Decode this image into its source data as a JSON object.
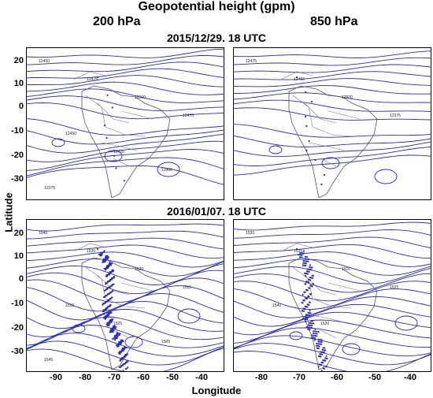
{
  "figure": {
    "title": "Geopotential height (gpm)",
    "columns": [
      "200 hPa",
      "850 hPa"
    ],
    "rows": [
      "2015/12/29.  18 UTC",
      "2016/01/07.  18 UTC"
    ],
    "ylabel": "Latitude",
    "xlabel": "Longitude",
    "yticks": [
      "20",
      "10",
      "0",
      "-10",
      "-20",
      "-30"
    ],
    "xticks": [
      "-90",
      "-80",
      "-70",
      "-60",
      "-50",
      "-40"
    ],
    "line_color": "#2a2ab8",
    "panels": [
      {
        "id": "top-left",
        "labels": [
          "12450",
          "12475",
          "12500",
          "12475",
          "12450",
          "12425",
          "12400",
          "12375"
        ]
      },
      {
        "id": "top-right",
        "labels": [
          "12475",
          "12450",
          "12500",
          "12375"
        ]
      },
      {
        "id": "bottom-left",
        "labels": [
          "1540",
          "1530",
          "1520",
          "1515",
          "1510",
          "1525",
          "1505",
          "1545"
        ]
      },
      {
        "id": "bottom-right",
        "labels": [
          "1530",
          "1535",
          "1510",
          "1525",
          "1540",
          "1520"
        ]
      }
    ]
  }
}
